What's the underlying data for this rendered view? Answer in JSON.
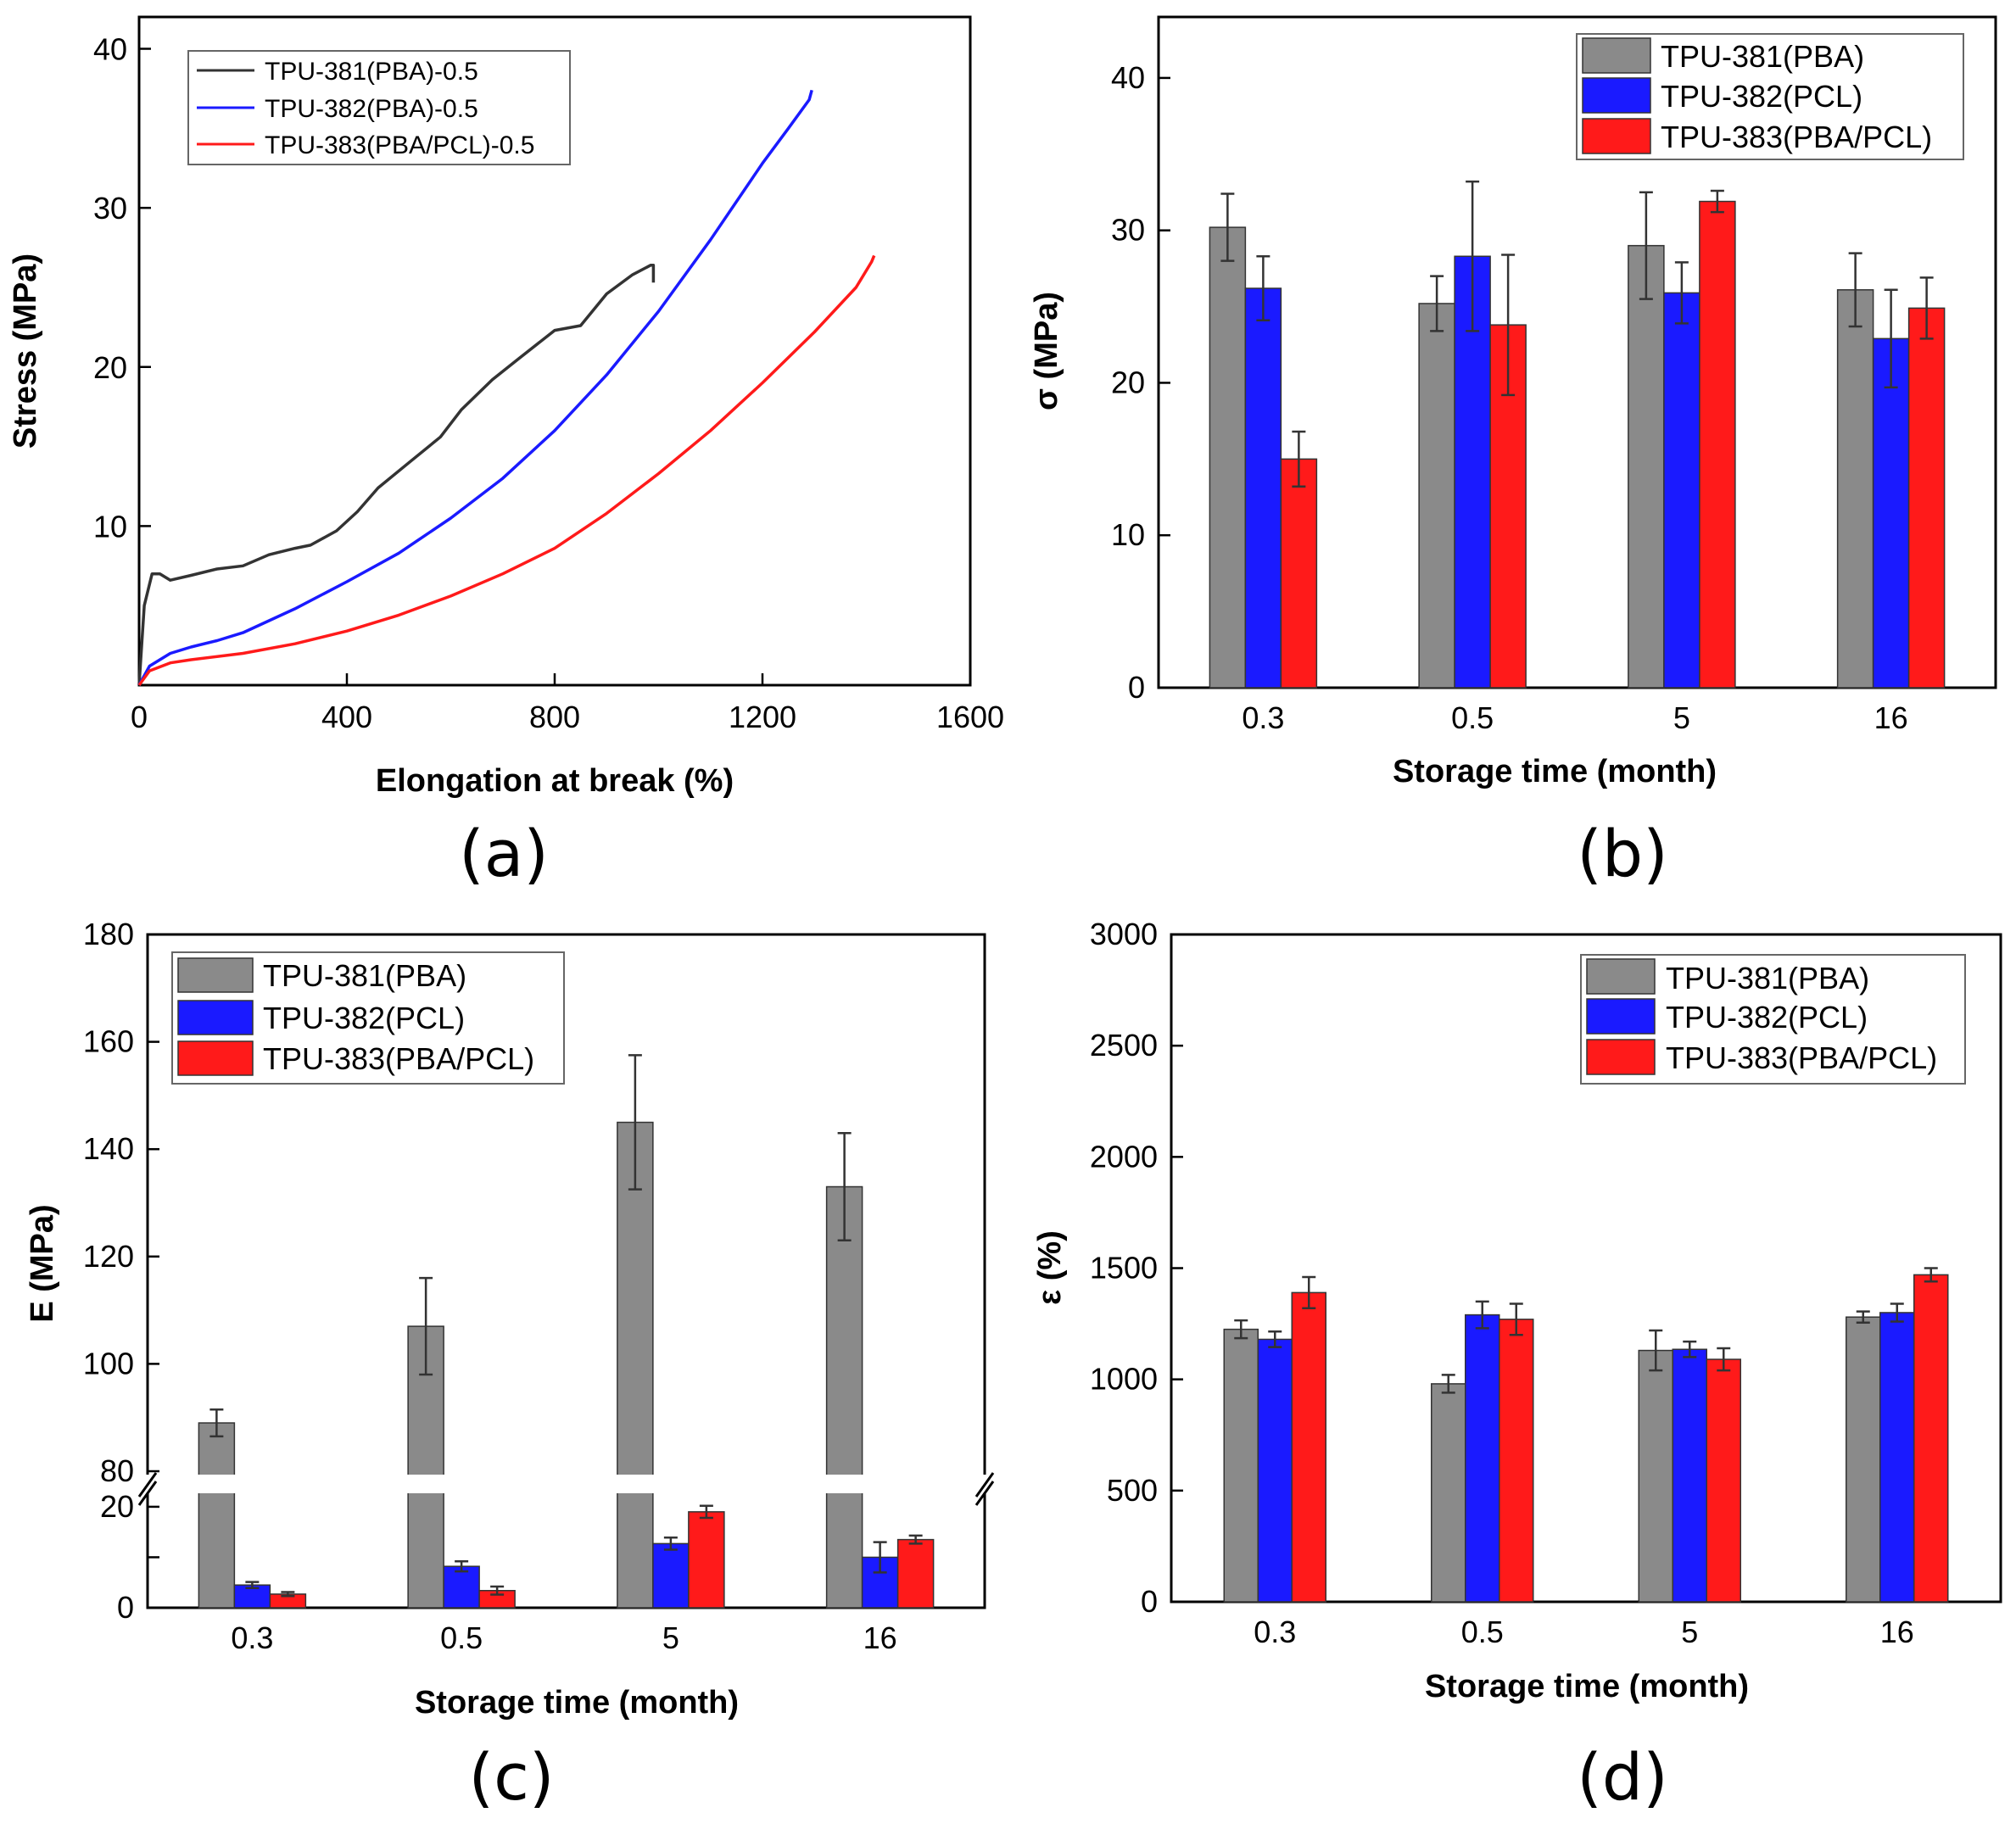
{
  "chart_data": [
    {
      "id": "a",
      "type": "line",
      "panel_label": "(a)",
      "xlabel": "Elongation at break (%)",
      "ylabel": "Stress (MPa)",
      "xlim": [
        0,
        1600
      ],
      "ylim": [
        0,
        42
      ],
      "xticks": [
        0,
        400,
        800,
        1200,
        1600
      ],
      "yticks": [
        10,
        20,
        30,
        40
      ],
      "series": [
        {
          "name": "TPU-381(PBA)-0.5",
          "color": "#333333",
          "x": [
            0,
            10,
            25,
            40,
            60,
            100,
            150,
            200,
            250,
            300,
            330,
            380,
            420,
            460,
            520,
            580,
            620,
            680,
            730,
            800,
            850,
            900,
            950,
            985,
            990,
            990
          ],
          "y": [
            0,
            5,
            7,
            7,
            6.6,
            6.9,
            7.3,
            7.5,
            8.2,
            8.6,
            8.8,
            9.7,
            10.9,
            12.4,
            14.0,
            15.6,
            17.3,
            19.2,
            20.5,
            22.3,
            22.6,
            24.6,
            25.8,
            26.4,
            26.4,
            25.3
          ]
        },
        {
          "name": "TPU-382(PBA)-0.5",
          "color": "#1a1aff",
          "x": [
            0,
            20,
            60,
            100,
            150,
            200,
            300,
            400,
            500,
            600,
            700,
            800,
            900,
            1000,
            1100,
            1200,
            1250,
            1290,
            1295
          ],
          "y": [
            0,
            1.2,
            2.0,
            2.4,
            2.8,
            3.3,
            4.8,
            6.5,
            8.3,
            10.5,
            13.0,
            16.0,
            19.5,
            23.5,
            28.0,
            32.8,
            35.0,
            36.8,
            37.4
          ]
        },
        {
          "name": "TPU-383(PBA/PCL)-0.5",
          "color": "#ff1a1a",
          "x": [
            0,
            20,
            60,
            100,
            200,
            300,
            400,
            500,
            600,
            700,
            800,
            900,
            1000,
            1100,
            1200,
            1300,
            1380,
            1410,
            1415
          ],
          "y": [
            0,
            0.9,
            1.4,
            1.6,
            2.0,
            2.6,
            3.4,
            4.4,
            5.6,
            7.0,
            8.6,
            10.8,
            13.3,
            16.0,
            19.0,
            22.2,
            25.0,
            26.6,
            27.0
          ]
        }
      ]
    },
    {
      "id": "b",
      "type": "bar",
      "panel_label": "(b)",
      "xlabel": "Storage time (month)",
      "ylabel": "σ (MPa)",
      "categories": [
        "0.3",
        "0.5",
        "5",
        "16"
      ],
      "ylim": [
        0,
        44
      ],
      "yticks": [
        0,
        10,
        20,
        30,
        40
      ],
      "series": [
        {
          "name": "TPU-381(PBA)",
          "color": "#8a8a8a",
          "values": [
            30.2,
            25.2,
            29.0,
            26.1
          ],
          "errors": [
            2.2,
            1.8,
            3.5,
            2.4
          ]
        },
        {
          "name": "TPU-382(PCL)",
          "color": "#1a1aff",
          "values": [
            26.2,
            28.3,
            25.9,
            22.9
          ],
          "errors": [
            2.1,
            4.9,
            2.0,
            3.2
          ]
        },
        {
          "name": "TPU-383(PBA/PCL)",
          "color": "#ff1a1a",
          "values": [
            15.0,
            23.8,
            31.9,
            24.9
          ],
          "errors": [
            1.8,
            4.6,
            0.7,
            2.0
          ]
        }
      ]
    },
    {
      "id": "c",
      "type": "bar",
      "panel_label": "(c)",
      "xlabel": "Storage time (month)",
      "ylabel": "E (MPa)",
      "categories": [
        "0.3",
        "0.5",
        "5",
        "16"
      ],
      "axis_break": {
        "lower_range": [
          0,
          22
        ],
        "upper_range": [
          80,
          180
        ]
      },
      "yticks_lower": [
        0,
        10,
        20
      ],
      "yticks_lower_labels": [
        "0",
        "",
        "20"
      ],
      "yticks_upper": [
        80,
        100,
        120,
        140,
        160,
        180
      ],
      "series": [
        {
          "name": "TPU-381(PBA)",
          "color": "#8a8a8a",
          "values": [
            89.0,
            107.0,
            145.0,
            133.0
          ],
          "errors": [
            2.5,
            9.0,
            12.5,
            10.0
          ]
        },
        {
          "name": "TPU-382(PCL)",
          "color": "#1a1aff",
          "values": [
            4.5,
            8.2,
            12.7,
            10.0
          ],
          "errors": [
            0.6,
            1.0,
            1.2,
            3.0
          ]
        },
        {
          "name": "TPU-383(PBA/PCL)",
          "color": "#ff1a1a",
          "values": [
            2.7,
            3.4,
            19.0,
            13.5
          ],
          "errors": [
            0.4,
            0.8,
            1.2,
            0.8
          ]
        }
      ]
    },
    {
      "id": "d",
      "type": "bar",
      "panel_label": "(d)",
      "xlabel": "Storage time (month)",
      "ylabel": "ε (%)",
      "categories": [
        "0.3",
        "0.5",
        "5",
        "16"
      ],
      "ylim": [
        0,
        3000
      ],
      "yticks": [
        0,
        500,
        1000,
        1500,
        2000,
        2500,
        3000
      ],
      "series": [
        {
          "name": "TPU-381(PBA)",
          "color": "#8a8a8a",
          "values": [
            1225,
            980,
            1130,
            1280
          ],
          "errors": [
            40,
            40,
            90,
            25
          ]
        },
        {
          "name": "TPU-382(PCL)",
          "color": "#1a1aff",
          "values": [
            1180,
            1290,
            1135,
            1300
          ],
          "errors": [
            35,
            60,
            35,
            40
          ]
        },
        {
          "name": "TPU-383(PBA/PCL)",
          "color": "#ff1a1a",
          "values": [
            1390,
            1270,
            1090,
            1470
          ],
          "errors": [
            70,
            70,
            50,
            30
          ]
        }
      ]
    }
  ]
}
